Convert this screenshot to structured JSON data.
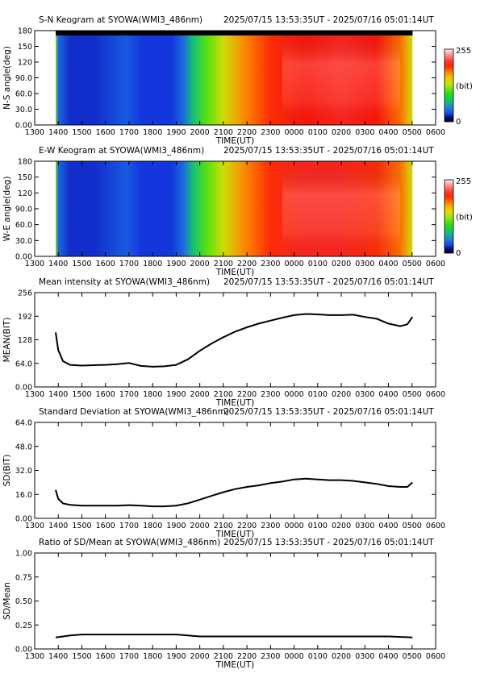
{
  "time_range": "2025/07/15 13:53:35UT - 2025/07/16 05:01:14UT",
  "xlabel": "TIME(UT)",
  "x_ticks": [
    "1300",
    "1400",
    "1500",
    "1600",
    "1700",
    "1800",
    "1900",
    "2000",
    "2100",
    "2200",
    "2300",
    "0000",
    "0100",
    "0200",
    "0300",
    "0400",
    "0500",
    "0600"
  ],
  "colorbar": {
    "max_label": "255",
    "unit_label": "(bit)",
    "min_label": "0"
  },
  "chart_data": [
    {
      "type": "heatmap",
      "title": "S-N Keogram at SYOWA(WMI3_486nm)",
      "ylabel": "N-S angle(deg)",
      "y_ticks": [
        "0.00",
        "30.0",
        "60.0",
        "90.0",
        "120",
        "150",
        "180"
      ],
      "ylim": [
        0,
        180
      ],
      "xlim_hours": [
        13,
        30
      ],
      "data_start_hour": 13.89,
      "data_end_hour": 29.02,
      "intensity_profile": [
        {
          "hour": 13.89,
          "level": 120
        },
        {
          "hour": 14.0,
          "level": 40
        },
        {
          "hour": 14.5,
          "level": 22
        },
        {
          "hour": 15.5,
          "level": 22
        },
        {
          "hour": 16.9,
          "level": 35
        },
        {
          "hour": 17.5,
          "level": 24
        },
        {
          "hour": 18.8,
          "level": 24
        },
        {
          "hour": 19.3,
          "level": 40
        },
        {
          "hour": 19.7,
          "level": 70
        },
        {
          "hour": 20.3,
          "level": 110
        },
        {
          "hour": 21.0,
          "level": 140
        },
        {
          "hour": 22.0,
          "level": 175
        },
        {
          "hour": 23.0,
          "level": 195
        },
        {
          "hour": 24.5,
          "level": 200
        },
        {
          "hour": 26.0,
          "level": 205
        },
        {
          "hour": 27.5,
          "level": 200
        },
        {
          "hour": 28.5,
          "level": 180
        },
        {
          "hour": 29.02,
          "level": 140
        }
      ]
    },
    {
      "type": "heatmap",
      "title": "E-W Keogram at SYOWA(WMI3_486nm)",
      "ylabel": "W-E angle(deg)",
      "y_ticks": [
        "0.00",
        "30.0",
        "60.0",
        "90.0",
        "120",
        "150",
        "180"
      ],
      "ylim": [
        0,
        180
      ],
      "xlim_hours": [
        13,
        30
      ],
      "data_start_hour": 13.89,
      "data_end_hour": 29.02,
      "intensity_profile": [
        {
          "hour": 13.89,
          "level": 120
        },
        {
          "hour": 14.0,
          "level": 40
        },
        {
          "hour": 14.5,
          "level": 22
        },
        {
          "hour": 15.5,
          "level": 22
        },
        {
          "hour": 16.9,
          "level": 35
        },
        {
          "hour": 17.5,
          "level": 24
        },
        {
          "hour": 18.8,
          "level": 24
        },
        {
          "hour": 19.3,
          "level": 40
        },
        {
          "hour": 19.7,
          "level": 70
        },
        {
          "hour": 20.3,
          "level": 110
        },
        {
          "hour": 21.0,
          "level": 140
        },
        {
          "hour": 22.0,
          "level": 175
        },
        {
          "hour": 23.0,
          "level": 195
        },
        {
          "hour": 24.5,
          "level": 205
        },
        {
          "hour": 26.0,
          "level": 205
        },
        {
          "hour": 27.5,
          "level": 195
        },
        {
          "hour": 28.5,
          "level": 180
        },
        {
          "hour": 29.02,
          "level": 140
        }
      ]
    },
    {
      "type": "line",
      "title": "Mean intensity at SYOWA(WMI3_486nm)",
      "ylabel": "MEAN(BIT)",
      "y_ticks": [
        "0.00",
        "64.0",
        "128",
        "192",
        "256"
      ],
      "ylim": [
        0,
        256
      ],
      "xlim_hours": [
        13,
        30
      ],
      "series": [
        {
          "x": [
            13.89,
            14.0,
            14.2,
            14.5,
            15.0,
            15.5,
            16.0,
            16.5,
            17.0,
            17.5,
            18.0,
            18.5,
            19.0,
            19.5,
            20.0,
            20.5,
            21.0,
            21.5,
            22.0,
            22.5,
            23.0,
            23.5,
            24.0,
            24.5,
            25.0,
            25.5,
            26.0,
            26.5,
            27.0,
            27.5,
            28.0,
            28.5,
            28.8,
            29.02
          ],
          "y": [
            148,
            100,
            70,
            60,
            58,
            59,
            60,
            62,
            65,
            57,
            55,
            56,
            60,
            75,
            98,
            118,
            135,
            150,
            162,
            172,
            180,
            188,
            195,
            198,
            197,
            195,
            195,
            196,
            190,
            185,
            172,
            165,
            170,
            190
          ]
        }
      ]
    },
    {
      "type": "line",
      "title": "Standard Deviation at SYOWA(WMI3_486nm)",
      "ylabel": "SD(BIT)",
      "y_ticks": [
        "0.00",
        "16.0",
        "32.0",
        "48.0",
        "64.0"
      ],
      "ylim": [
        0,
        64
      ],
      "xlim_hours": [
        13,
        30
      ],
      "series": [
        {
          "x": [
            13.89,
            14.0,
            14.2,
            14.5,
            15.0,
            15.5,
            16.0,
            16.5,
            17.0,
            17.5,
            18.0,
            18.5,
            19.0,
            19.5,
            20.0,
            20.5,
            21.0,
            21.5,
            22.0,
            22.5,
            23.0,
            23.5,
            24.0,
            24.5,
            25.0,
            25.5,
            26.0,
            26.5,
            27.0,
            27.5,
            28.0,
            28.5,
            28.8,
            29.02
          ],
          "y": [
            19,
            13,
            10,
            9,
            8.5,
            8.5,
            8.5,
            8.5,
            8.8,
            8.5,
            8,
            8,
            8.5,
            10,
            12.5,
            15,
            17.5,
            19.5,
            21,
            22,
            23.5,
            24.5,
            26,
            26.5,
            26,
            25.5,
            25.5,
            25,
            24,
            23,
            21.5,
            21,
            21,
            24
          ]
        }
      ]
    },
    {
      "type": "line",
      "title": "Ratio of SD/Mean at SYOWA(WMI3_486nm)",
      "ylabel": "SD/Mean",
      "y_ticks": [
        "0.00",
        "0.25",
        "0.50",
        "0.75",
        "1.00"
      ],
      "ylim": [
        0,
        1
      ],
      "xlim_hours": [
        13,
        30
      ],
      "series": [
        {
          "x": [
            13.89,
            14.2,
            14.5,
            15.0,
            16.0,
            17.0,
            18.0,
            19.0,
            19.5,
            20.0,
            21.0,
            22.0,
            23.0,
            24.0,
            25.0,
            26.0,
            27.0,
            28.0,
            29.02
          ],
          "y": [
            0.12,
            0.13,
            0.14,
            0.15,
            0.15,
            0.15,
            0.15,
            0.15,
            0.14,
            0.13,
            0.13,
            0.13,
            0.13,
            0.13,
            0.13,
            0.13,
            0.13,
            0.13,
            0.12
          ]
        }
      ]
    }
  ]
}
